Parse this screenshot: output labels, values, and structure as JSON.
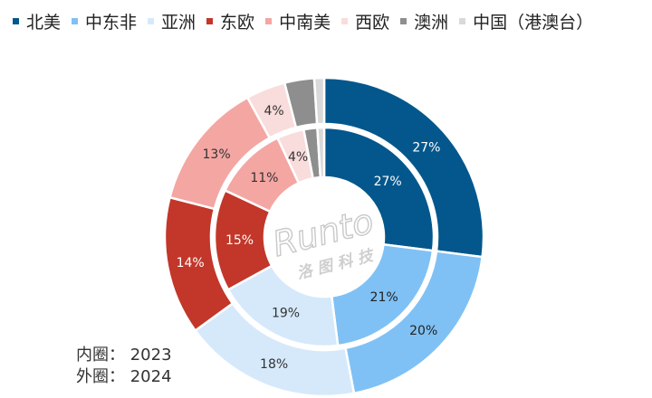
{
  "legend": [
    {
      "label": "北美",
      "color": "#03578C"
    },
    {
      "label": "中东非",
      "color": "#7FC1F5"
    },
    {
      "label": "亚洲",
      "color": "#D6E9FB"
    },
    {
      "label": "东欧",
      "color": "#C2372A"
    },
    {
      "label": "中南美",
      "color": "#F4A6A3"
    },
    {
      "label": "西欧",
      "color": "#F9DCDC"
    },
    {
      "label": "澳洲",
      "color": "#8E8E8E"
    },
    {
      "label": "中国（港澳台）",
      "color": "#D9D9D9"
    }
  ],
  "notes": {
    "inner": "内圈：  2023",
    "outer": "外圈：  2024"
  },
  "watermark": {
    "brand": "Runto",
    "subtitle": "洛 图 科 技"
  },
  "chart_data": {
    "type": "pie",
    "variant": "double-donut",
    "categories": [
      "北美",
      "中东非",
      "亚洲",
      "东欧",
      "中南美",
      "西欧",
      "澳洲",
      "中国（港澳台）"
    ],
    "series": [
      {
        "name": "2023",
        "ring": "inner",
        "values": [
          27,
          21,
          19,
          15,
          11,
          4,
          2,
          1
        ]
      },
      {
        "name": "2024",
        "ring": "outer",
        "values": [
          27,
          20,
          18,
          14,
          13,
          4,
          3,
          1
        ]
      }
    ],
    "data_labels_shown": {
      "inner": [
        "27%",
        "21%",
        "19%",
        "15%",
        "11%",
        "4%",
        "",
        ""
      ],
      "outer": [
        "27%",
        "20%",
        "18%",
        "14%",
        "13%",
        "4%",
        "",
        ""
      ]
    },
    "label_colors": [
      "#ffffff",
      "#222222",
      "#333333",
      "#ffffff",
      "#333333",
      "#333333",
      "#333333",
      "#333333"
    ],
    "legend_position": "top"
  }
}
